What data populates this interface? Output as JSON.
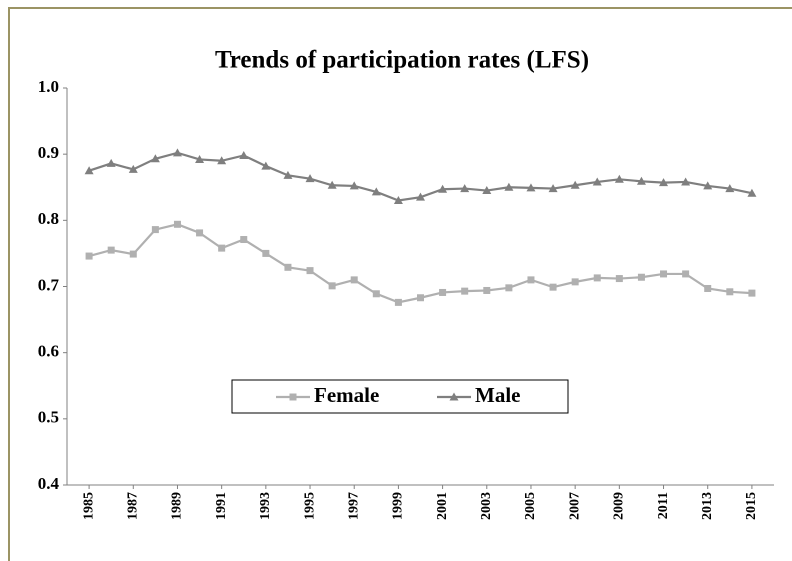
{
  "chart_data": {
    "type": "line",
    "title": "Trends of participation rates (LFS)",
    "x": [
      1985,
      1986,
      1987,
      1988,
      1989,
      1990,
      1991,
      1992,
      1993,
      1994,
      1995,
      1996,
      1997,
      1998,
      1999,
      2000,
      2001,
      2002,
      2003,
      2004,
      2005,
      2006,
      2007,
      2008,
      2009,
      2010,
      2011,
      2012,
      2013,
      2014,
      2015
    ],
    "xlim": [
      1984,
      2016
    ],
    "xticks": [
      1985,
      1987,
      1989,
      1991,
      1993,
      1995,
      1997,
      1999,
      2001,
      2003,
      2005,
      2007,
      2009,
      2011,
      2013,
      2015
    ],
    "ylim": [
      0.4,
      1.0
    ],
    "yticks": [
      {
        "value": 1.0,
        "label": "1.0"
      },
      0.9,
      0.8,
      0.7,
      0.6,
      0.5,
      0.4
    ],
    "grid": false,
    "series": [
      {
        "name": "Female",
        "color": "#b0b0b0",
        "marker": "square",
        "values": [
          0.746,
          0.755,
          0.749,
          0.786,
          0.794,
          0.781,
          0.758,
          0.771,
          0.75,
          0.729,
          0.724,
          0.701,
          0.71,
          0.689,
          0.676,
          0.683,
          0.691,
          0.693,
          0.694,
          0.698,
          0.71,
          0.699,
          0.707,
          0.713,
          0.712,
          0.714,
          0.719,
          0.719,
          0.697,
          0.692,
          0.69
        ]
      },
      {
        "name": "Male",
        "color": "#7f7f7f",
        "marker": "triangle",
        "values": [
          0.875,
          0.886,
          0.877,
          0.893,
          0.902,
          0.892,
          0.89,
          0.898,
          0.882,
          0.868,
          0.863,
          0.853,
          0.852,
          0.843,
          0.83,
          0.835,
          0.847,
          0.848,
          0.845,
          0.85,
          0.849,
          0.848,
          0.853,
          0.858,
          0.862,
          0.859,
          0.857,
          0.858,
          0.852,
          0.848,
          0.841
        ]
      }
    ]
  }
}
